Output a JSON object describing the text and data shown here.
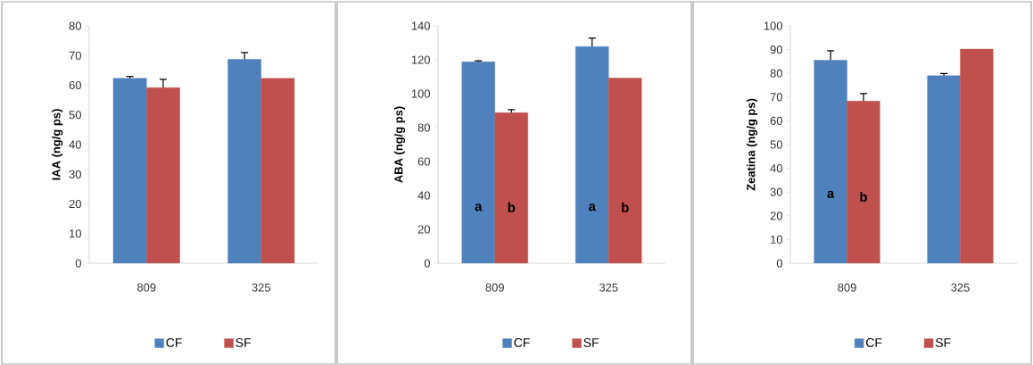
{
  "chart_data": [
    {
      "type": "bar",
      "ylabel": "IAA (ng/g ps)",
      "categories": [
        "809",
        "325"
      ],
      "ylim": [
        0,
        80
      ],
      "yticks": [
        0,
        10,
        20,
        30,
        40,
        50,
        60,
        70,
        80
      ],
      "legend": "bottom",
      "series": [
        {
          "name": "CF",
          "color": "#4f81bd",
          "values": [
            62.3,
            68.7
          ],
          "errors": [
            [
              62.3,
              63.0
            ],
            [
              68.7,
              71.0
            ]
          ]
        },
        {
          "name": "SF",
          "color": "#c0504d",
          "values": [
            59.2,
            62.3
          ],
          "errors": [
            [
              59.2,
              62.0
            ],
            null
          ]
        }
      ]
    },
    {
      "type": "bar",
      "ylabel": "ABA (ng/g ps)",
      "categories": [
        "809",
        "325"
      ],
      "ylim": [
        0,
        140
      ],
      "yticks": [
        0,
        20,
        40,
        60,
        80,
        100,
        120,
        140
      ],
      "legend": "bottom",
      "series": [
        {
          "name": "CF",
          "color": "#4f81bd",
          "values": [
            118.8,
            127.8
          ],
          "errors": [
            [
              118.8,
              119.4
            ],
            [
              127.8,
              132.8
            ]
          ]
        },
        {
          "name": "SF",
          "color": "#c0504d",
          "values": [
            88.8,
            109.2
          ],
          "errors": [
            [
              88.8,
              90.6
            ],
            null
          ]
        }
      ],
      "annotations": [
        {
          "text": "a",
          "x": "809",
          "y": 33
        },
        {
          "text": "b",
          "x": "809",
          "y": 33
        },
        {
          "text": "a",
          "x": "325",
          "y": 33
        },
        {
          "text": "b",
          "x": "325",
          "y": 33
        }
      ]
    },
    {
      "type": "bar",
      "ylabel": "Zeatina (ng/g ps)",
      "categories": [
        "809",
        "325"
      ],
      "ylim": [
        0,
        100
      ],
      "yticks": [
        0,
        10,
        20,
        30,
        40,
        50,
        60,
        70,
        80,
        90,
        100
      ],
      "legend": "bottom",
      "series": [
        {
          "name": "CF",
          "color": "#4f81bd",
          "values": [
            85.5,
            79.0
          ],
          "errors": [
            [
              85.5,
              89.5
            ],
            [
              79.0,
              79.9
            ]
          ]
        },
        {
          "name": "SF",
          "color": "#c0504d",
          "values": [
            68.3,
            90.2
          ],
          "errors": [
            [
              68.3,
              71.5
            ],
            null
          ]
        }
      ],
      "annotations": [
        {
          "text": "a",
          "x": "809",
          "y": 29
        },
        {
          "text": "b",
          "x": "809",
          "y": 28
        }
      ]
    }
  ]
}
